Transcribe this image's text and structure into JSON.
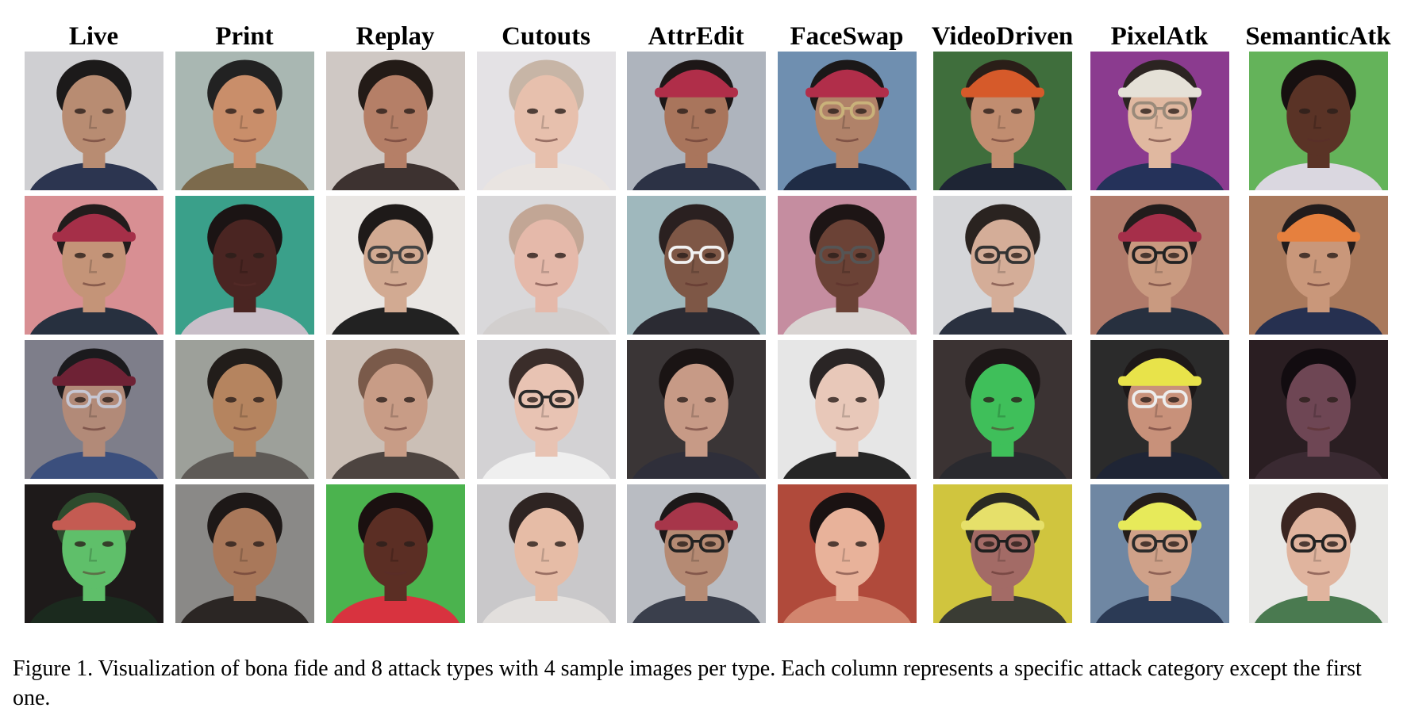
{
  "figure": {
    "columns": [
      {
        "label": "Live",
        "key": "live",
        "tiles": [
          {
            "bg": "#cfcfd2",
            "skin": "#b88c72",
            "hair": "#1c1a1a",
            "shirt": "#2c3550",
            "hat": null
          },
          {
            "bg": "#d88f93",
            "skin": "#c49478",
            "hair": "#221c1c",
            "shirt": "#27303f",
            "hat": "#a52f48"
          },
          {
            "bg": "#7e7e8a",
            "skin": "#b28a78",
            "hair": "#1b1a1d",
            "shirt": "#3b4f7d",
            "hat": "#6e2235",
            "glasses": "#c7c7d3"
          },
          {
            "bg": "#1e1a1a",
            "skin": "#5fbf6a",
            "hair": "#2d4b2d",
            "shirt": "#1b2a1e",
            "hat": "#c45b52"
          }
        ]
      },
      {
        "label": "Print",
        "key": "print",
        "tiles": [
          {
            "bg": "#a9b7b2",
            "skin": "#c98e6a",
            "hair": "#222222",
            "shirt": "#7c6a4c"
          },
          {
            "bg": "#3aa08a",
            "skin": "#4a2522",
            "hair": "#1b1414",
            "shirt": "#c9bfc9"
          },
          {
            "bg": "#9da09a",
            "skin": "#b5845f",
            "hair": "#221d1a",
            "shirt": "#5e5a56"
          },
          {
            "bg": "#8a8987",
            "skin": "#a9785a",
            "hair": "#1d1817",
            "shirt": "#2b2624"
          }
        ]
      },
      {
        "label": "Replay",
        "key": "replay",
        "tiles": [
          {
            "bg": "#cfc8c4",
            "skin": "#b57f67",
            "hair": "#231b17",
            "shirt": "#3d3230"
          },
          {
            "bg": "#e9e6e3",
            "skin": "#d2aa92",
            "hair": "#1e1a19",
            "shirt": "#222222",
            "glasses": "#444444"
          },
          {
            "bg": "#cbbfb6",
            "skin": "#c89c86",
            "hair": "#7a5a4a",
            "shirt": "#4d4440"
          },
          {
            "bg": "#4bb34e",
            "skin": "#5b2e24",
            "hair": "#1a1010",
            "shirt": "#d8333f"
          }
        ]
      },
      {
        "label": "Cutouts",
        "key": "cutouts",
        "tiles": [
          {
            "bg": "#e4e2e5",
            "skin": "#e7c0ad",
            "hair": "#c7b5a6",
            "shirt": "#e9e4e1"
          },
          {
            "bg": "#d9d8da",
            "skin": "#e5b9aa",
            "hair": "#c2a695",
            "shirt": "#d2cfce"
          },
          {
            "bg": "#d3d2d4",
            "skin": "#e8c3b3",
            "hair": "#3a2d2a",
            "shirt": "#efefef",
            "glasses": "#2a2a2a"
          },
          {
            "bg": "#c9c8ca",
            "skin": "#e6bca6",
            "hair": "#2e2422",
            "shirt": "#e2dfdd"
          }
        ]
      },
      {
        "label": "AttrEdit",
        "key": "attredit",
        "tiles": [
          {
            "bg": "#aeb4bd",
            "skin": "#a9755c",
            "hair": "#1d1717",
            "shirt": "#2c3245",
            "hat": "#b02e49"
          },
          {
            "bg": "#9fb8bd",
            "skin": "#7e5746",
            "hair": "#2a2020",
            "shirt": "#2b2b33",
            "glasses": "#f2f2f2"
          },
          {
            "bg": "#3a3536",
            "skin": "#c79a86",
            "hair": "#1a1414",
            "shirt": "#2f2f3a"
          },
          {
            "bg": "#b9bcc2",
            "skin": "#b58a73",
            "hair": "#1c1818",
            "shirt": "#3a3f4c",
            "hat": "#a7364a",
            "glasses": "#222222"
          }
        ]
      },
      {
        "label": "FaceSwap",
        "key": "faceswap",
        "tiles": [
          {
            "bg": "#6f8fb0",
            "skin": "#b08269",
            "hair": "#1b1818",
            "shirt": "#1f2c45",
            "hat": "#b12e4a",
            "glasses": "#c9b27a"
          },
          {
            "bg": "#c58da0",
            "skin": "#6b4236",
            "hair": "#1d1515",
            "shirt": "#d9d4d2",
            "glasses": "#555555"
          },
          {
            "bg": "#e6e6e6",
            "skin": "#e8c8b9",
            "hair": "#2a2525",
            "shirt": "#262626"
          },
          {
            "bg": "#b04a3b",
            "skin": "#e8b29a",
            "hair": "#1a1212",
            "shirt": "#d2856e"
          }
        ]
      },
      {
        "label": "VideoDriven",
        "key": "videodriven",
        "tiles": [
          {
            "bg": "#3f6e3c",
            "skin": "#c18d70",
            "hair": "#2a1e18",
            "shirt": "#1e2534",
            "hat": "#d65a2a"
          },
          {
            "bg": "#d5d6d9",
            "skin": "#d4ad98",
            "hair": "#2a2320",
            "shirt": "#2a3140",
            "glasses": "#333333"
          },
          {
            "bg": "#3b3333",
            "skin": "#3fbf5a",
            "hair": "#1d1717",
            "shirt": "#2a2a2f"
          },
          {
            "bg": "#d0c53e",
            "skin": "#a36b66",
            "hair": "#2a2a22",
            "shirt": "#3a3c34",
            "hat": "#e6e06a",
            "glasses": "#1e1e1e"
          }
        ]
      },
      {
        "label": "PixelAtk",
        "key": "pixelatk",
        "tiles": [
          {
            "bg": "#8b3b8f",
            "skin": "#e0b8a0",
            "hair": "#2c2422",
            "shirt": "#25325a",
            "hat": "#e5e1d7",
            "glasses": "#9a8a7a"
          },
          {
            "bg": "#b07a6a",
            "skin": "#c99a80",
            "hair": "#221c1c",
            "shirt": "#27303f",
            "hat": "#a62f4a",
            "glasses": "#222222"
          },
          {
            "bg": "#2b2b2b",
            "skin": "#c8917a",
            "hair": "#1d1818",
            "shirt": "#1f2535",
            "hat": "#e8e34a",
            "glasses": "#ededed"
          },
          {
            "bg": "#6f87a3",
            "skin": "#cfa189",
            "hair": "#241d1a",
            "shirt": "#2b3a55",
            "hat": "#e7ea5a",
            "glasses": "#2a2a2a"
          }
        ]
      },
      {
        "label": "SemanticAtk",
        "key": "semanticatk",
        "tiles": [
          {
            "bg": "#64b35a",
            "skin": "#5a3326",
            "hair": "#171010",
            "shirt": "#dad7e0"
          },
          {
            "bg": "#a9795c",
            "skin": "#c9977a",
            "hair": "#221c1c",
            "shirt": "#263050",
            "hat": "#e6803e"
          },
          {
            "bg": "#2a1e22",
            "skin": "#6e4654",
            "hair": "#120c10",
            "shirt": "#3a2a32"
          },
          {
            "bg": "#e8e8e6",
            "skin": "#e0b49e",
            "hair": "#3a2521",
            "shirt": "#4a7a50",
            "glasses": "#222222"
          }
        ]
      }
    ]
  },
  "caption": "Figure 1. Visualization of bona fide and 8 attack types with 4 sample images per type. Each column represents a specific attack category except the first one."
}
